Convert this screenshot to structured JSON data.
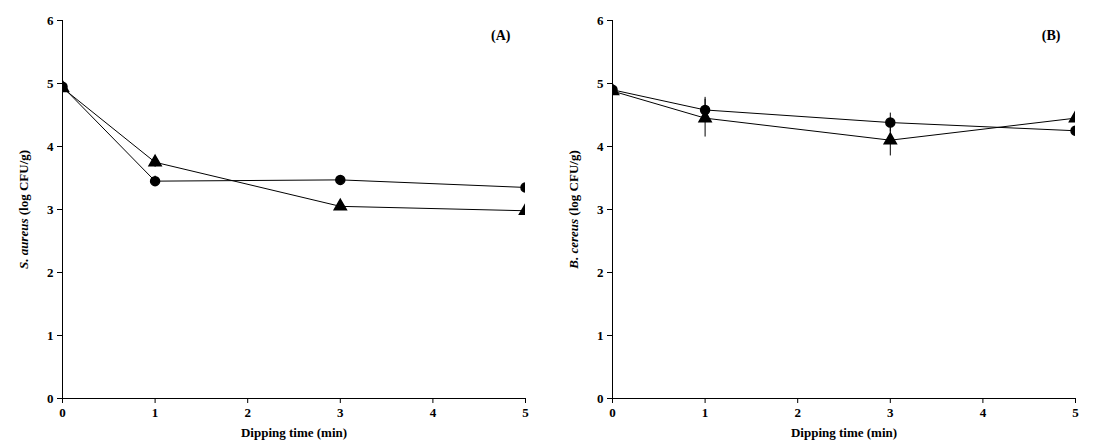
{
  "chart_data": [
    {
      "type": "line",
      "title": "(A)",
      "x_label": "Dipping time (min)",
      "y_label": "S. aureus (log CFU/g)",
      "x": [
        0,
        1,
        3,
        5
      ],
      "xlim": [
        0,
        5
      ],
      "xticks": [
        0,
        1,
        2,
        3,
        4,
        5
      ],
      "ylim": [
        0,
        6
      ],
      "yticks": [
        0,
        1,
        2,
        3,
        4,
        5,
        6
      ],
      "series": [
        {
          "marker": "circle",
          "color": "#000000",
          "values": [
            4.95,
            3.45,
            3.47,
            3.35
          ],
          "errors": [
            0.05,
            0.08,
            0.07,
            0.2
          ]
        },
        {
          "marker": "triangle",
          "color": "#000000",
          "values": [
            4.93,
            3.75,
            3.05,
            2.98
          ],
          "errors": [
            0.05,
            0.08,
            0.05,
            0.1
          ]
        }
      ]
    },
    {
      "type": "line",
      "title": "(B)",
      "x_label": "Dipping time (min)",
      "y_label": "B. cereus (log CFU/g)",
      "x": [
        0,
        1,
        3,
        5
      ],
      "xlim": [
        0,
        5
      ],
      "xticks": [
        0,
        1,
        2,
        3,
        4,
        5
      ],
      "ylim": [
        0,
        6
      ],
      "yticks": [
        0,
        1,
        2,
        3,
        4,
        5,
        6
      ],
      "series": [
        {
          "marker": "circle",
          "color": "#000000",
          "values": [
            4.9,
            4.58,
            4.38,
            4.25
          ],
          "errors": [
            0.05,
            0.2,
            0.15,
            0.07
          ]
        },
        {
          "marker": "triangle",
          "color": "#000000",
          "values": [
            4.88,
            4.45,
            4.1,
            4.45
          ],
          "errors": [
            0.05,
            0.3,
            0.25,
            0.2
          ]
        }
      ]
    }
  ]
}
